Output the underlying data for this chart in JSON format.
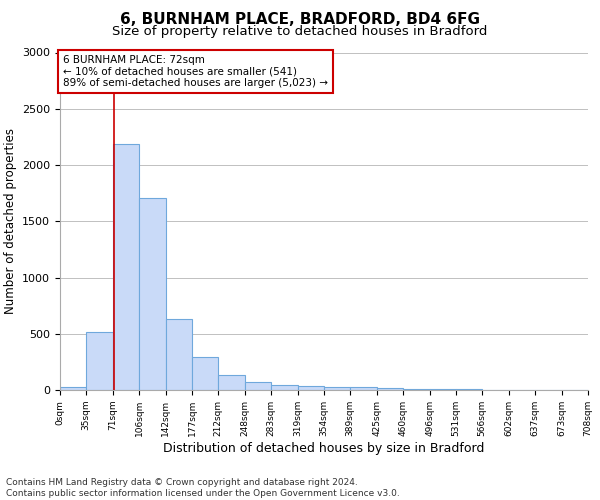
{
  "title1": "6, BURNHAM PLACE, BRADFORD, BD4 6FG",
  "title2": "Size of property relative to detached houses in Bradford",
  "xlabel": "Distribution of detached houses by size in Bradford",
  "ylabel": "Number of detached properties",
  "footnote": "Contains HM Land Registry data © Crown copyright and database right 2024.\nContains public sector information licensed under the Open Government Licence v3.0.",
  "bar_edges": [
    0,
    35,
    71,
    106,
    142,
    177,
    212,
    248,
    283,
    319,
    354,
    389,
    425,
    460,
    496,
    531,
    566,
    602,
    637,
    673,
    708
  ],
  "bar_heights": [
    30,
    520,
    2185,
    1710,
    635,
    295,
    130,
    75,
    45,
    35,
    30,
    25,
    20,
    10,
    5,
    5,
    3,
    3,
    2,
    2
  ],
  "bar_color": "#c9daf8",
  "bar_edgecolor": "#6fa8dc",
  "grid_color": "#c0c0c0",
  "vline_x": 72,
  "vline_color": "#cc0000",
  "annotation_text": "6 BURNHAM PLACE: 72sqm\n← 10% of detached houses are smaller (541)\n89% of semi-detached houses are larger (5,023) →",
  "annotation_box_edgecolor": "#cc0000",
  "annotation_box_facecolor": "#ffffff",
  "ylim": [
    0,
    3000
  ],
  "yticks": [
    0,
    500,
    1000,
    1500,
    2000,
    2500,
    3000
  ],
  "tick_labels": [
    "0sqm",
    "35sqm",
    "71sqm",
    "106sqm",
    "142sqm",
    "177sqm",
    "212sqm",
    "248sqm",
    "283sqm",
    "319sqm",
    "354sqm",
    "389sqm",
    "425sqm",
    "460sqm",
    "496sqm",
    "531sqm",
    "566sqm",
    "602sqm",
    "637sqm",
    "673sqm",
    "708sqm"
  ],
  "bg_color": "#ffffff",
  "title1_fontsize": 11,
  "title2_fontsize": 9.5,
  "xlabel_fontsize": 9,
  "ylabel_fontsize": 8.5,
  "footnote_fontsize": 6.5,
  "annotation_fontsize": 7.5
}
